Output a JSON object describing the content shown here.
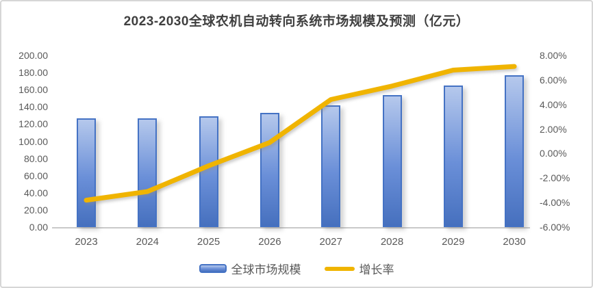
{
  "chart_data": {
    "type": "combo",
    "title": "2023-2030全球农机自动转向系统市场规模及预测（亿元）",
    "categories": [
      "2023",
      "2024",
      "2025",
      "2026",
      "2027",
      "2028",
      "2029",
      "2030"
    ],
    "series": [
      {
        "name": "全球市场规模",
        "type": "bar",
        "axis": "left",
        "unit": "亿元",
        "values": [
          126.5,
          126.6,
          129.0,
          133.0,
          142.0,
          153.5,
          165.0,
          176.5
        ]
      },
      {
        "name": "增长率",
        "type": "line",
        "axis": "right",
        "unit": "%",
        "values": [
          -3.8,
          -3.1,
          -1.0,
          0.9,
          4.4,
          5.5,
          6.8,
          7.1
        ]
      }
    ],
    "left_axis": {
      "min": 0,
      "max": 200,
      "step": 20,
      "tick_labels": [
        "200.00",
        "180.00",
        "160.00",
        "140.00",
        "120.00",
        "100.00",
        "80.00",
        "60.00",
        "40.00",
        "20.00",
        "0.00"
      ]
    },
    "right_axis": {
      "min": -6,
      "max": 8,
      "step": 2,
      "tick_labels": [
        "8.00%",
        "6.00%",
        "4.00%",
        "2.00%",
        "0.00%",
        "-2.00%",
        "-4.00%",
        "-6.00%"
      ]
    },
    "legend": {
      "position": "bottom",
      "items": [
        "全球市场规模",
        "增长率"
      ]
    },
    "grid": "off",
    "colors": {
      "bar_gradient_top": "#b5c8ec",
      "bar_gradient_mid": "#6a8fd8",
      "bar_gradient_bottom": "#4670be",
      "bar_border": "#4472c4",
      "line": "#f0b400",
      "axis_text": "#595959",
      "title_text": "#3f3f3f",
      "axis_line": "#c9c9c9"
    }
  }
}
